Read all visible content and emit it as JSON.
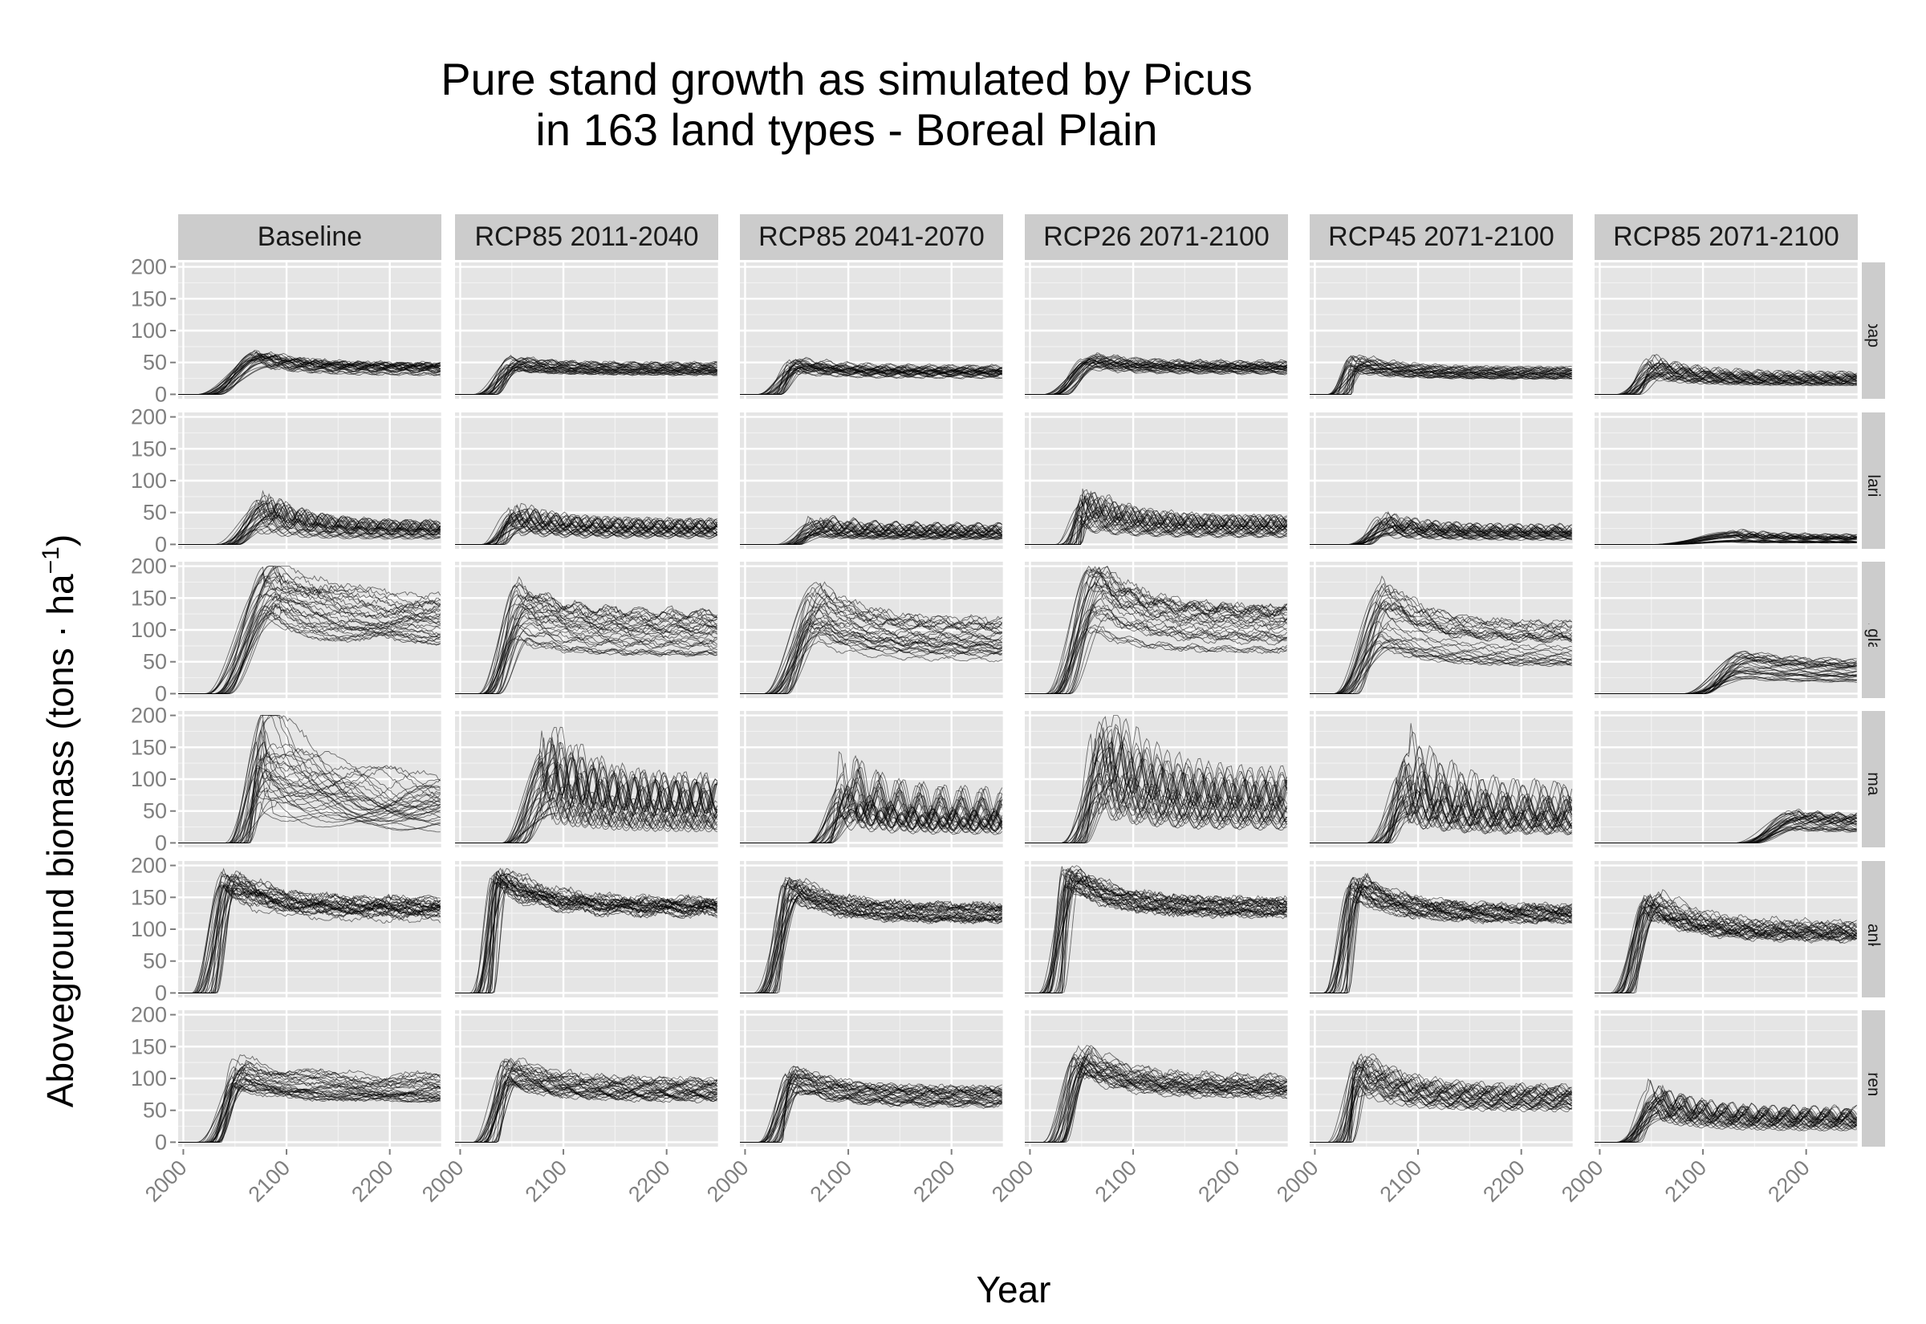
{
  "chart_data": {
    "type": "line",
    "title_lines": [
      "Pure stand growth as simulated by Picus",
      "in 163 land types - Boreal Plain"
    ],
    "xlabel": "Year",
    "ylabel": "Aboveground biomass (tons · ha",
    "ylabel_superscript": "−1",
    "ylabel_close": ")",
    "xlim": [
      1995,
      2250
    ],
    "ylim": [
      -7,
      207
    ],
    "x_ticks": [
      2000,
      2100,
      2200
    ],
    "x_tick_labels": [
      "2000",
      "2100",
      "2200"
    ],
    "y_ticks": [
      0,
      50,
      100,
      150,
      200
    ],
    "y_tick_labels": [
      "0",
      "50",
      "100",
      "150",
      "200"
    ],
    "grid": true,
    "columns": [
      "Baseline",
      "RCP85 2011-2040",
      "RCP85 2041-2070",
      "RCP26 2071-2100",
      "RCP45 2071-2100",
      "RCP85 2071-2100"
    ],
    "rows": [
      "Betula papyrifera",
      "Larix laricina",
      "Picea glauca",
      "Picea mariana",
      "Pinus banksiana",
      "Populus tremuloides"
    ],
    "lines_per_panel": 30,
    "panels": [
      [
        {
          "onset": 2012,
          "peak": 55,
          "peak_year": 2065,
          "plateau": 40,
          "spread": 0.22,
          "cycle": 20,
          "cycle_amp": 0.06
        },
        {
          "onset": 2012,
          "peak": 48,
          "peak_year": 2045,
          "plateau": 40,
          "spread": 0.22,
          "cycle": 20,
          "cycle_amp": 0.06
        },
        {
          "onset": 2012,
          "peak": 45,
          "peak_year": 2040,
          "plateau": 35,
          "spread": 0.25,
          "cycle": 20,
          "cycle_amp": 0.07
        },
        {
          "onset": 2012,
          "peak": 52,
          "peak_year": 2050,
          "plateau": 42,
          "spread": 0.22,
          "cycle": 20,
          "cycle_amp": 0.06
        },
        {
          "onset": 2012,
          "peak": 48,
          "peak_year": 2030,
          "plateau": 33,
          "spread": 0.25,
          "cycle": 20,
          "cycle_amp": 0.07
        },
        {
          "onset": 2015,
          "peak": 42,
          "peak_year": 2045,
          "plateau": 24,
          "spread": 0.35,
          "cycle": 20,
          "cycle_amp": 0.15
        }
      ],
      [
        {
          "onset": 2030,
          "peak": 45,
          "peak_year": 2070,
          "plateau": 20,
          "spread": 0.55,
          "cycle": 20,
          "cycle_amp": 0.25
        },
        {
          "onset": 2020,
          "peak": 35,
          "peak_year": 2045,
          "plateau": 22,
          "spread": 0.5,
          "cycle": 20,
          "cycle_amp": 0.25
        },
        {
          "onset": 2030,
          "peak": 25,
          "peak_year": 2060,
          "plateau": 18,
          "spread": 0.55,
          "cycle": 20,
          "cycle_amp": 0.25
        },
        {
          "onset": 2025,
          "peak": 50,
          "peak_year": 2045,
          "plateau": 25,
          "spread": 0.5,
          "cycle": 20,
          "cycle_amp": 0.25
        },
        {
          "onset": 2030,
          "peak": 30,
          "peak_year": 2060,
          "plateau": 18,
          "spread": 0.6,
          "cycle": 20,
          "cycle_amp": 0.25
        },
        {
          "onset": 2050,
          "peak": 12,
          "peak_year": 2120,
          "plateau": 8,
          "spread": 0.7,
          "cycle": 20,
          "cycle_amp": 0.2
        }
      ],
      [
        {
          "onset": 2020,
          "peak": 165,
          "peak_year": 2075,
          "plateau": 115,
          "spread": 0.3,
          "cycle": 120,
          "cycle_amp": 0.1
        },
        {
          "onset": 2015,
          "peak": 130,
          "peak_year": 2050,
          "plateau": 95,
          "spread": 0.35,
          "cycle": 30,
          "cycle_amp": 0.05
        },
        {
          "onset": 2018,
          "peak": 120,
          "peak_year": 2060,
          "plateau": 80,
          "spread": 0.45,
          "cycle": 30,
          "cycle_amp": 0.05
        },
        {
          "onset": 2015,
          "peak": 150,
          "peak_year": 2055,
          "plateau": 100,
          "spread": 0.35,
          "cycle": 30,
          "cycle_amp": 0.05
        },
        {
          "onset": 2018,
          "peak": 120,
          "peak_year": 2060,
          "plateau": 75,
          "spread": 0.45,
          "cycle": 30,
          "cycle_amp": 0.05
        },
        {
          "onset": 2080,
          "peak": 45,
          "peak_year": 2130,
          "plateau": 35,
          "spread": 0.5,
          "cycle": 30,
          "cycle_amp": 0.05
        }
      ],
      [
        {
          "onset": 2040,
          "peak": 130,
          "peak_year": 2070,
          "plateau": 55,
          "spread": 0.6,
          "cycle": 120,
          "cycle_amp": 0.3
        },
        {
          "onset": 2040,
          "peak": 90,
          "peak_year": 2075,
          "plateau": 50,
          "spread": 0.6,
          "cycle": 20,
          "cycle_amp": 0.35
        },
        {
          "onset": 2060,
          "peak": 70,
          "peak_year": 2090,
          "plateau": 40,
          "spread": 0.6,
          "cycle": 20,
          "cycle_amp": 0.35
        },
        {
          "onset": 2030,
          "peak": 120,
          "peak_year": 2060,
          "plateau": 60,
          "spread": 0.55,
          "cycle": 20,
          "cycle_amp": 0.3
        },
        {
          "onset": 2050,
          "peak": 90,
          "peak_year": 2080,
          "plateau": 45,
          "spread": 0.6,
          "cycle": 20,
          "cycle_amp": 0.35
        },
        {
          "onset": 2130,
          "peak": 35,
          "peak_year": 2180,
          "plateau": 30,
          "spread": 0.4,
          "cycle": 20,
          "cycle_amp": 0.1
        }
      ],
      [
        {
          "onset": 2008,
          "peak": 170,
          "peak_year": 2035,
          "plateau": 130,
          "spread": 0.1,
          "cycle": 60,
          "cycle_amp": 0.05
        },
        {
          "onset": 2008,
          "peak": 180,
          "peak_year": 2030,
          "plateau": 135,
          "spread": 0.1,
          "cycle": 40,
          "cycle_amp": 0.03
        },
        {
          "onset": 2008,
          "peak": 165,
          "peak_year": 2035,
          "plateau": 125,
          "spread": 0.1,
          "cycle": 40,
          "cycle_amp": 0.03
        },
        {
          "onset": 2008,
          "peak": 180,
          "peak_year": 2030,
          "plateau": 132,
          "spread": 0.1,
          "cycle": 40,
          "cycle_amp": 0.03
        },
        {
          "onset": 2008,
          "peak": 170,
          "peak_year": 2030,
          "plateau": 125,
          "spread": 0.1,
          "cycle": 40,
          "cycle_amp": 0.03
        },
        {
          "onset": 2010,
          "peak": 140,
          "peak_year": 2040,
          "plateau": 95,
          "spread": 0.15,
          "cycle": 30,
          "cycle_amp": 0.06
        }
      ],
      [
        {
          "onset": 2012,
          "peak": 110,
          "peak_year": 2045,
          "plateau": 85,
          "spread": 0.2,
          "cycle": 100,
          "cycle_amp": 0.08
        },
        {
          "onset": 2012,
          "peak": 110,
          "peak_year": 2040,
          "plateau": 82,
          "spread": 0.2,
          "cycle": 30,
          "cycle_amp": 0.06
        },
        {
          "onset": 2012,
          "peak": 100,
          "peak_year": 2040,
          "plateau": 72,
          "spread": 0.22,
          "cycle": 30,
          "cycle_amp": 0.06
        },
        {
          "onset": 2012,
          "peak": 125,
          "peak_year": 2040,
          "plateau": 85,
          "spread": 0.2,
          "cycle": 30,
          "cycle_amp": 0.06
        },
        {
          "onset": 2012,
          "peak": 110,
          "peak_year": 2035,
          "plateau": 68,
          "spread": 0.25,
          "cycle": 20,
          "cycle_amp": 0.08
        },
        {
          "onset": 2015,
          "peak": 60,
          "peak_year": 2045,
          "plateau": 35,
          "spread": 0.4,
          "cycle": 20,
          "cycle_amp": 0.2
        }
      ]
    ]
  }
}
